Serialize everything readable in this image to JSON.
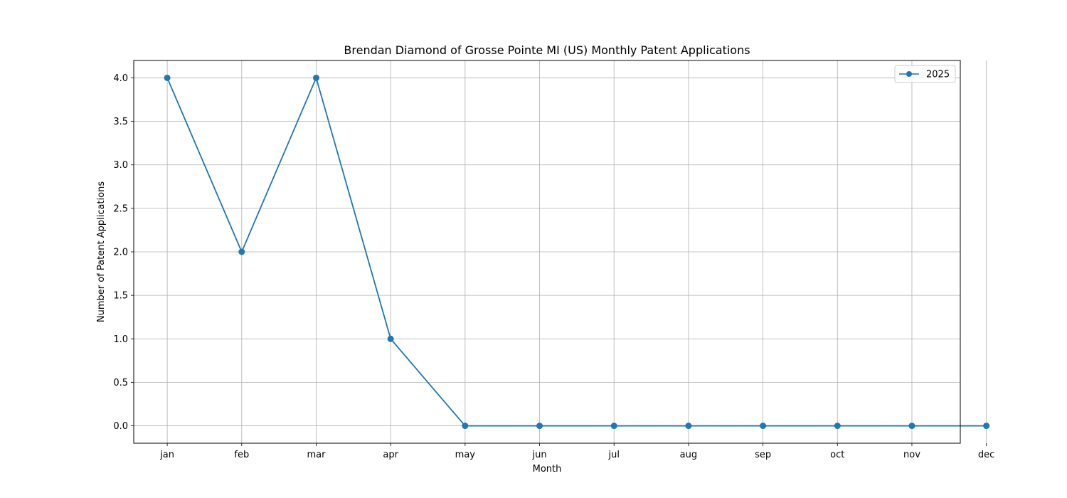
{
  "chart_data": {
    "type": "line",
    "title": "Brendan Diamond of Grosse Pointe MI (US) Monthly Patent Applications",
    "xlabel": "Month",
    "ylabel": "Number of Patent Applications",
    "categories": [
      "jan",
      "feb",
      "mar",
      "apr",
      "may",
      "jun",
      "jul",
      "aug",
      "sep",
      "oct",
      "nov",
      "dec"
    ],
    "series": [
      {
        "name": "2025",
        "values": [
          4,
          2,
          4,
          1,
          0,
          0,
          0,
          0,
          0,
          0,
          0,
          0
        ],
        "color": "#1f77b4",
        "marker": "circle"
      }
    ],
    "ylim": [
      -0.2,
      4.2
    ],
    "yticks": [
      "0.0",
      "0.5",
      "1.0",
      "1.5",
      "2.0",
      "2.5",
      "3.0",
      "3.5",
      "4.0"
    ],
    "grid": true,
    "legend": "top-right"
  }
}
